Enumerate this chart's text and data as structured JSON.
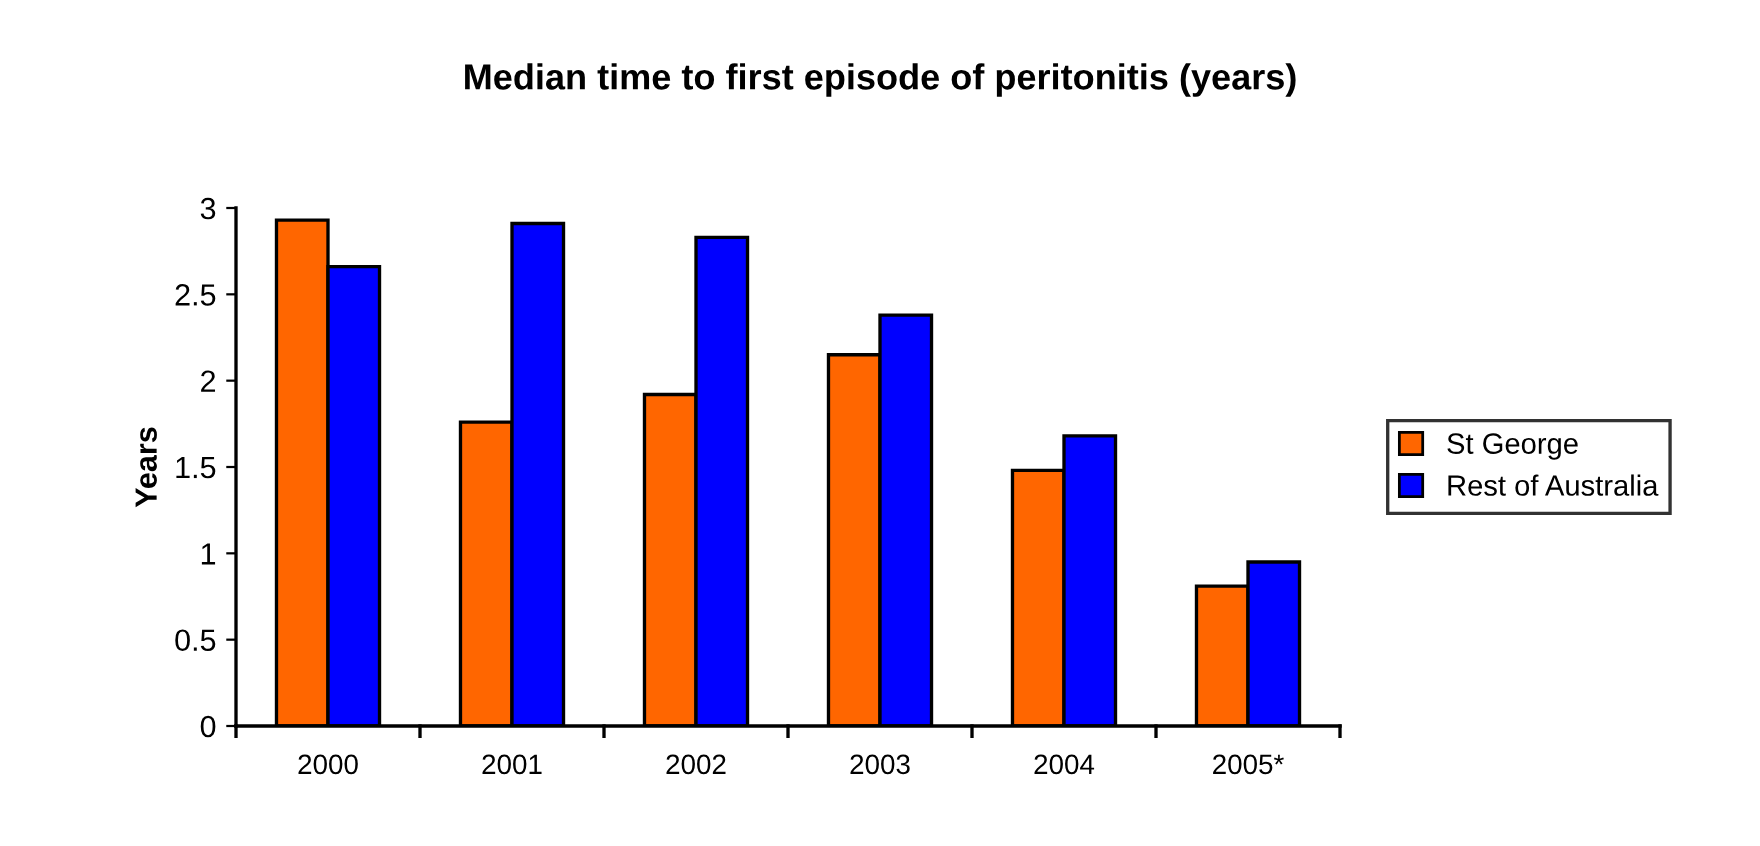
{
  "chart_data": {
    "type": "bar",
    "title": "Median time to first episode of peritonitis (years)",
    "ylabel": "Years",
    "categories": [
      "2000",
      "2001",
      "2002",
      "2003",
      "2004",
      "2005*"
    ],
    "series": [
      {
        "name": "St George",
        "color": "#ff6600",
        "values": [
          2.93,
          1.76,
          1.92,
          2.15,
          1.48,
          0.81
        ]
      },
      {
        "name": "Rest of Australia",
        "color": "#0000ff",
        "values": [
          2.66,
          2.91,
          2.83,
          2.38,
          1.68,
          0.95
        ]
      }
    ],
    "ylim": [
      0,
      3
    ],
    "yticks": [
      0,
      0.5,
      1,
      1.5,
      2,
      2.5,
      3
    ],
    "grid": false,
    "legend": "right"
  }
}
